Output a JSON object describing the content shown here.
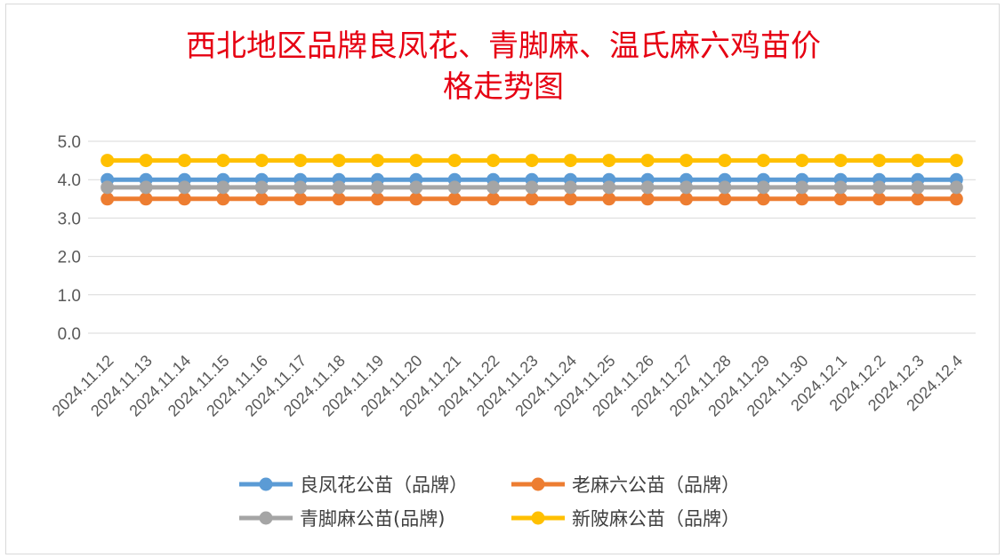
{
  "chart_data": {
    "type": "line",
    "title_lines": [
      "西北地区品牌良凤花、青脚麻、温氏麻六鸡苗价",
      "格走势图"
    ],
    "categories": [
      "2024.11.12",
      "2024.11.13",
      "2024.11.14",
      "2024.11.15",
      "2024.11.16",
      "2024.11.17",
      "2024.11.18",
      "2024.11.19",
      "2024.11.20",
      "2024.11.21",
      "2024.11.22",
      "2024.11.23",
      "2024.11.24",
      "2024.11.25",
      "2024.11.26",
      "2024.11.27",
      "2024.11.28",
      "2024.11.29",
      "2024.11.30",
      "2024.12.1",
      "2024.12.2",
      "2024.12.3",
      "2024.12.4"
    ],
    "y_ticks": [
      "0.0",
      "1.0",
      "2.0",
      "3.0",
      "4.0",
      "5.0"
    ],
    "ylim": [
      0,
      5
    ],
    "grid": true,
    "legend_position": "bottom",
    "series": [
      {
        "name": "良凤花公苗（品牌）",
        "color": "#5b9bd5",
        "values": [
          4.0,
          4.0,
          4.0,
          4.0,
          4.0,
          4.0,
          4.0,
          4.0,
          4.0,
          4.0,
          4.0,
          4.0,
          4.0,
          4.0,
          4.0,
          4.0,
          4.0,
          4.0,
          4.0,
          4.0,
          4.0,
          4.0,
          4.0
        ]
      },
      {
        "name": "老麻六公苗（品牌）",
        "color": "#ed7d31",
        "values": [
          3.5,
          3.5,
          3.5,
          3.5,
          3.5,
          3.5,
          3.5,
          3.5,
          3.5,
          3.5,
          3.5,
          3.5,
          3.5,
          3.5,
          3.5,
          3.5,
          3.5,
          3.5,
          3.5,
          3.5,
          3.5,
          3.5,
          3.5
        ]
      },
      {
        "name": "青脚麻公苗(品牌)",
        "color": "#a5a5a5",
        "values": [
          3.8,
          3.8,
          3.8,
          3.8,
          3.8,
          3.8,
          3.8,
          3.8,
          3.8,
          3.8,
          3.8,
          3.8,
          3.8,
          3.8,
          3.8,
          3.8,
          3.8,
          3.8,
          3.8,
          3.8,
          3.8,
          3.8,
          3.8
        ]
      },
      {
        "name": "新陂麻公苗（品牌）",
        "color": "#ffc000",
        "values": [
          4.5,
          4.5,
          4.5,
          4.5,
          4.5,
          4.5,
          4.5,
          4.5,
          4.5,
          4.5,
          4.5,
          4.5,
          4.5,
          4.5,
          4.5,
          4.5,
          4.5,
          4.5,
          4.5,
          4.5,
          4.5,
          4.5,
          4.5
        ]
      }
    ]
  }
}
